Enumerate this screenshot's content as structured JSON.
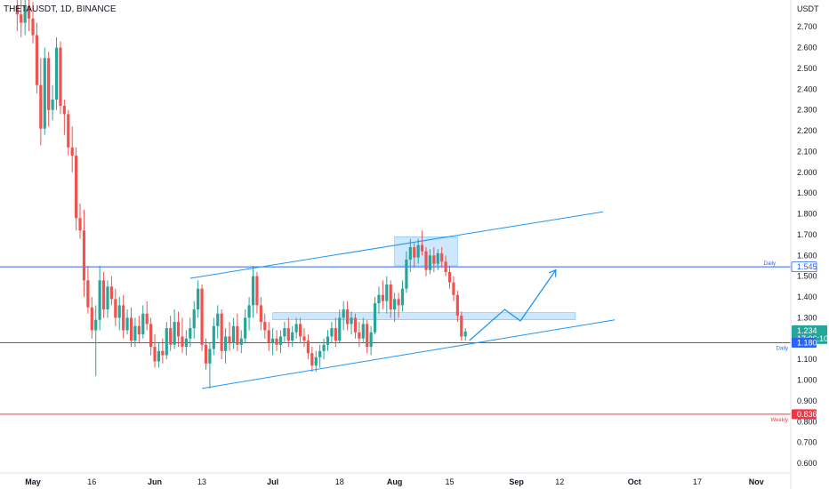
{
  "header": {
    "symbol_title": "THETAUSDT, 1D, BINANCE"
  },
  "price_axis": {
    "currency": "USDT",
    "ticks": [
      "2.700",
      "2.600",
      "2.500",
      "2.400",
      "2.300",
      "2.200",
      "2.100",
      "2.000",
      "1.900",
      "1.800",
      "1.700",
      "1.600",
      "1.500",
      "1.400",
      "1.300",
      "1.200",
      "1.100",
      "1.000",
      "0.900",
      "0.800",
      "0.700",
      "0.600"
    ]
  },
  "time_axis": {
    "labels": [
      "May",
      "16",
      "Jun",
      "13",
      "Jul",
      "18",
      "Aug",
      "15",
      "Sep",
      "12",
      "Oct",
      "17",
      "Nov"
    ]
  },
  "tags": {
    "daily_upper": {
      "value": "1.545",
      "note": "Daily"
    },
    "current": {
      "value": "1.234",
      "timer": "17:06:10"
    },
    "daily_lower": {
      "value": "1.180",
      "note": "Daily"
    },
    "weekly": {
      "value": "0.836",
      "note": "Weekly"
    }
  },
  "colors": {
    "up": "#26a69a",
    "down": "#ef5350",
    "level": "#2962ff",
    "line": "#2196f3",
    "zone": "#90caf9",
    "weekly": "#f23645",
    "current": "#26a69a"
  },
  "chart_data": {
    "type": "candlestick",
    "title": "THETAUSDT, 1D, BINANCE",
    "x": "date",
    "ylabel": "USDT",
    "ylim": [
      0.55,
      2.85
    ],
    "levels": [
      {
        "name": "Daily",
        "value": 1.545
      },
      {
        "name": "Daily",
        "value": 1.18
      },
      {
        "name": "Weekly",
        "value": 0.836
      }
    ],
    "zones": [
      {
        "from": "2022-08-01",
        "to": "2022-08-17",
        "low": 1.55,
        "high": 1.69
      },
      {
        "from": "2022-07-01",
        "to": "2022-09-16",
        "low": 1.29,
        "high": 1.325
      }
    ],
    "trendlines": [
      {
        "points": [
          [
            "2022-06-10",
            1.49
          ],
          [
            "2022-09-23",
            1.81
          ]
        ]
      },
      {
        "points": [
          [
            "2022-06-13",
            0.96
          ],
          [
            "2022-09-26",
            1.29
          ]
        ]
      }
    ],
    "projection": [
      [
        "2022-08-20",
        1.19
      ],
      [
        "2022-08-29",
        1.34
      ],
      [
        "2022-09-02",
        1.285
      ],
      [
        "2022-09-11",
        1.53
      ]
    ],
    "candles": [
      [
        "2022-04-27",
        2.8,
        2.87,
        2.68,
        2.76
      ],
      [
        "2022-04-28",
        2.76,
        2.83,
        2.65,
        2.72
      ],
      [
        "2022-04-29",
        2.72,
        2.85,
        2.66,
        2.8
      ],
      [
        "2022-04-30",
        2.8,
        2.84,
        2.68,
        2.74
      ],
      [
        "2022-05-01",
        2.74,
        2.82,
        2.62,
        2.66
      ],
      [
        "2022-05-02",
        2.66,
        2.72,
        2.38,
        2.42
      ],
      [
        "2022-05-03",
        2.42,
        2.55,
        2.13,
        2.21
      ],
      [
        "2022-05-04",
        2.21,
        2.6,
        2.18,
        2.55
      ],
      [
        "2022-05-05",
        2.55,
        2.58,
        2.22,
        2.3
      ],
      [
        "2022-05-06",
        2.3,
        2.42,
        2.25,
        2.35
      ],
      [
        "2022-05-07",
        2.35,
        2.65,
        2.3,
        2.6
      ],
      [
        "2022-05-08",
        2.6,
        2.63,
        2.28,
        2.32
      ],
      [
        "2022-05-09",
        2.32,
        2.35,
        2.18,
        2.28
      ],
      [
        "2022-05-10",
        2.28,
        2.3,
        2.08,
        2.12
      ],
      [
        "2022-05-11",
        2.12,
        2.22,
        2.0,
        2.08
      ],
      [
        "2022-05-12",
        2.08,
        2.12,
        1.72,
        1.78
      ],
      [
        "2022-05-13",
        1.78,
        1.85,
        1.68,
        1.72
      ],
      [
        "2022-05-14",
        1.72,
        1.82,
        1.4,
        1.48
      ],
      [
        "2022-05-15",
        1.48,
        1.55,
        1.32,
        1.35
      ],
      [
        "2022-05-16",
        1.35,
        1.4,
        1.2,
        1.24
      ],
      [
        "2022-05-17",
        1.24,
        1.36,
        1.02,
        1.29
      ],
      [
        "2022-05-18",
        1.29,
        1.55,
        1.24,
        1.48
      ],
      [
        "2022-05-19",
        1.48,
        1.52,
        1.3,
        1.34
      ],
      [
        "2022-05-20",
        1.34,
        1.48,
        1.3,
        1.45
      ],
      [
        "2022-05-21",
        1.45,
        1.5,
        1.36,
        1.39
      ],
      [
        "2022-05-22",
        1.39,
        1.44,
        1.26,
        1.3
      ],
      [
        "2022-05-23",
        1.3,
        1.4,
        1.24,
        1.36
      ],
      [
        "2022-05-24",
        1.36,
        1.41,
        1.2,
        1.24
      ],
      [
        "2022-05-25",
        1.24,
        1.34,
        1.22,
        1.3
      ],
      [
        "2022-05-26",
        1.3,
        1.35,
        1.16,
        1.19
      ],
      [
        "2022-05-27",
        1.19,
        1.3,
        1.16,
        1.26
      ],
      [
        "2022-05-28",
        1.26,
        1.31,
        1.18,
        1.22
      ],
      [
        "2022-05-29",
        1.22,
        1.36,
        1.2,
        1.32
      ],
      [
        "2022-05-30",
        1.32,
        1.38,
        1.24,
        1.27
      ],
      [
        "2022-05-31",
        1.27,
        1.3,
        1.12,
        1.16
      ],
      [
        "2022-06-01",
        1.16,
        1.22,
        1.06,
        1.09
      ],
      [
        "2022-06-02",
        1.09,
        1.18,
        1.06,
        1.14
      ],
      [
        "2022-06-03",
        1.14,
        1.2,
        1.08,
        1.12
      ],
      [
        "2022-06-04",
        1.12,
        1.28,
        1.1,
        1.25
      ],
      [
        "2022-06-05",
        1.25,
        1.31,
        1.14,
        1.17
      ],
      [
        "2022-06-06",
        1.17,
        1.34,
        1.15,
        1.28
      ],
      [
        "2022-06-07",
        1.28,
        1.33,
        1.16,
        1.21
      ],
      [
        "2022-06-08",
        1.21,
        1.3,
        1.13,
        1.16
      ],
      [
        "2022-06-09",
        1.16,
        1.24,
        1.12,
        1.2
      ],
      [
        "2022-06-10",
        1.2,
        1.3,
        1.16,
        1.25
      ],
      [
        "2022-06-11",
        1.25,
        1.38,
        1.2,
        1.34
      ],
      [
        "2022-06-12",
        1.34,
        1.48,
        1.3,
        1.44
      ],
      [
        "2022-06-13",
        1.44,
        1.46,
        1.14,
        1.17
      ],
      [
        "2022-06-14",
        1.17,
        1.2,
        1.05,
        1.08
      ],
      [
        "2022-06-15",
        1.08,
        1.18,
        0.96,
        1.15
      ],
      [
        "2022-06-16",
        1.15,
        1.3,
        1.12,
        1.26
      ],
      [
        "2022-06-17",
        1.26,
        1.36,
        1.2,
        1.32
      ],
      [
        "2022-06-18",
        1.32,
        1.34,
        1.1,
        1.14
      ],
      [
        "2022-06-19",
        1.14,
        1.25,
        1.08,
        1.21
      ],
      [
        "2022-06-20",
        1.21,
        1.28,
        1.14,
        1.18
      ],
      [
        "2022-06-21",
        1.18,
        1.3,
        1.15,
        1.26
      ],
      [
        "2022-06-22",
        1.26,
        1.32,
        1.14,
        1.17
      ],
      [
        "2022-06-23",
        1.17,
        1.24,
        1.13,
        1.2
      ],
      [
        "2022-06-24",
        1.2,
        1.34,
        1.18,
        1.3
      ],
      [
        "2022-06-25",
        1.3,
        1.4,
        1.24,
        1.36
      ],
      [
        "2022-06-26",
        1.36,
        1.55,
        1.3,
        1.5
      ],
      [
        "2022-06-27",
        1.5,
        1.52,
        1.32,
        1.36
      ],
      [
        "2022-06-28",
        1.36,
        1.4,
        1.24,
        1.28
      ],
      [
        "2022-06-29",
        1.28,
        1.32,
        1.2,
        1.24
      ],
      [
        "2022-06-30",
        1.24,
        1.28,
        1.14,
        1.18
      ],
      [
        "2022-07-01",
        1.18,
        1.25,
        1.12,
        1.2
      ],
      [
        "2022-07-02",
        1.2,
        1.24,
        1.14,
        1.17
      ],
      [
        "2022-07-03",
        1.17,
        1.24,
        1.13,
        1.21
      ],
      [
        "2022-07-04",
        1.21,
        1.28,
        1.18,
        1.25
      ],
      [
        "2022-07-05",
        1.25,
        1.3,
        1.16,
        1.19
      ],
      [
        "2022-07-06",
        1.19,
        1.26,
        1.16,
        1.23
      ],
      [
        "2022-07-07",
        1.23,
        1.3,
        1.2,
        1.27
      ],
      [
        "2022-07-08",
        1.27,
        1.3,
        1.18,
        1.21
      ],
      [
        "2022-07-09",
        1.21,
        1.25,
        1.16,
        1.19
      ],
      [
        "2022-07-10",
        1.19,
        1.22,
        1.1,
        1.13
      ],
      [
        "2022-07-11",
        1.13,
        1.16,
        1.04,
        1.07
      ],
      [
        "2022-07-12",
        1.07,
        1.14,
        1.04,
        1.11
      ],
      [
        "2022-07-13",
        1.11,
        1.17,
        1.06,
        1.14
      ],
      [
        "2022-07-14",
        1.14,
        1.2,
        1.1,
        1.17
      ],
      [
        "2022-07-15",
        1.17,
        1.24,
        1.14,
        1.21
      ],
      [
        "2022-07-16",
        1.21,
        1.28,
        1.18,
        1.25
      ],
      [
        "2022-07-17",
        1.25,
        1.3,
        1.16,
        1.19
      ],
      [
        "2022-07-18",
        1.19,
        1.34,
        1.18,
        1.3
      ],
      [
        "2022-07-19",
        1.3,
        1.38,
        1.24,
        1.34
      ],
      [
        "2022-07-20",
        1.34,
        1.38,
        1.24,
        1.27
      ],
      [
        "2022-07-21",
        1.27,
        1.33,
        1.22,
        1.3
      ],
      [
        "2022-07-22",
        1.3,
        1.32,
        1.2,
        1.23
      ],
      [
        "2022-07-23",
        1.23,
        1.28,
        1.16,
        1.2
      ],
      [
        "2022-07-24",
        1.2,
        1.3,
        1.18,
        1.27
      ],
      [
        "2022-07-25",
        1.27,
        1.29,
        1.13,
        1.16
      ],
      [
        "2022-07-26",
        1.16,
        1.26,
        1.12,
        1.23
      ],
      [
        "2022-07-27",
        1.23,
        1.4,
        1.22,
        1.37
      ],
      [
        "2022-07-28",
        1.37,
        1.45,
        1.32,
        1.41
      ],
      [
        "2022-07-29",
        1.41,
        1.48,
        1.34,
        1.38
      ],
      [
        "2022-07-30",
        1.38,
        1.5,
        1.32,
        1.46
      ],
      [
        "2022-07-31",
        1.46,
        1.48,
        1.3,
        1.34
      ],
      [
        "2022-08-01",
        1.34,
        1.42,
        1.28,
        1.39
      ],
      [
        "2022-08-02",
        1.39,
        1.42,
        1.3,
        1.36
      ],
      [
        "2022-08-03",
        1.36,
        1.48,
        1.33,
        1.44
      ],
      [
        "2022-08-04",
        1.44,
        1.62,
        1.42,
        1.58
      ],
      [
        "2022-08-05",
        1.58,
        1.68,
        1.52,
        1.64
      ],
      [
        "2022-08-06",
        1.64,
        1.66,
        1.54,
        1.59
      ],
      [
        "2022-08-07",
        1.59,
        1.68,
        1.56,
        1.65
      ],
      [
        "2022-08-08",
        1.65,
        1.72,
        1.6,
        1.62
      ],
      [
        "2022-08-09",
        1.62,
        1.64,
        1.5,
        1.53
      ],
      [
        "2022-08-10",
        1.53,
        1.63,
        1.51,
        1.6
      ],
      [
        "2022-08-11",
        1.6,
        1.64,
        1.52,
        1.56
      ],
      [
        "2022-08-12",
        1.56,
        1.63,
        1.53,
        1.61
      ],
      [
        "2022-08-13",
        1.61,
        1.64,
        1.54,
        1.57
      ],
      [
        "2022-08-14",
        1.57,
        1.6,
        1.5,
        1.52
      ],
      [
        "2022-08-15",
        1.52,
        1.55,
        1.44,
        1.47
      ],
      [
        "2022-08-16",
        1.47,
        1.5,
        1.38,
        1.41
      ],
      [
        "2022-08-17",
        1.41,
        1.43,
        1.28,
        1.31
      ],
      [
        "2022-08-18",
        1.31,
        1.33,
        1.19,
        1.21
      ],
      [
        "2022-08-19",
        1.21,
        1.25,
        1.19,
        1.234
      ]
    ]
  }
}
